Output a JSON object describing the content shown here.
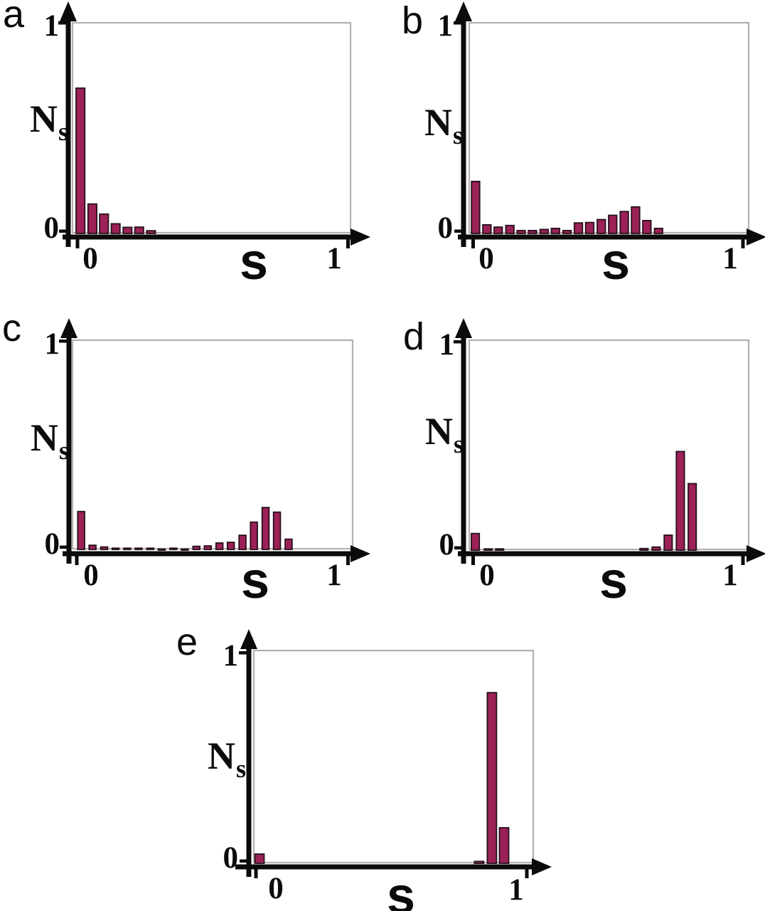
{
  "figure": {
    "description": "Five histogram panels of N_s versus s",
    "panel_letters": [
      "a",
      "b",
      "c",
      "d",
      "e"
    ]
  },
  "colors": {
    "bar_fill": "#9c2157",
    "bar_stroke": "#26101e",
    "axis": "#0b0b0b",
    "frame": "#b6b0ab",
    "text": "#0b0b0b"
  },
  "chart_data": [
    {
      "panel": "a",
      "letter": "a",
      "type": "bar",
      "xlabel": "s",
      "ylabel_base": "N",
      "ylabel_sub": "s",
      "ytick_top": "1",
      "ytick_bottom": "0",
      "xtick_left": "0",
      "xtick_right": "1",
      "ylim": [
        0,
        1
      ],
      "xlim_ticks": [
        0,
        1
      ],
      "x": [
        0.011,
        0.055,
        0.098,
        0.141,
        0.185,
        0.228,
        0.272
      ],
      "values": [
        0.69,
        0.14,
        0.092,
        0.046,
        0.029,
        0.03,
        0.013
      ]
    },
    {
      "panel": "b",
      "letter": "b",
      "type": "bar",
      "xlabel": "s",
      "ylabel_base": "N",
      "ylabel_sub": "s",
      "ytick_top": "1",
      "ytick_bottom": "0",
      "xtick_left": "0",
      "xtick_right": "1",
      "ylim": [
        0,
        1
      ],
      "xlim_ticks": [
        0,
        1
      ],
      "x": [
        0.009,
        0.051,
        0.093,
        0.136,
        0.178,
        0.22,
        0.263,
        0.305,
        0.348,
        0.39,
        0.432,
        0.475,
        0.517,
        0.56,
        0.602,
        0.644,
        0.687
      ],
      "values": [
        0.247,
        0.041,
        0.03,
        0.038,
        0.014,
        0.014,
        0.019,
        0.024,
        0.014,
        0.05,
        0.052,
        0.066,
        0.086,
        0.104,
        0.126,
        0.061,
        0.024
      ]
    },
    {
      "panel": "c",
      "letter": "c",
      "type": "bar",
      "xlabel": "s",
      "ylabel_base": "N",
      "ylabel_sub": "s",
      "ytick_top": "1",
      "ytick_bottom": "0",
      "xtick_left": "0",
      "xtick_right": "1",
      "ylim": [
        0,
        1
      ],
      "xlim_ticks": [
        0,
        1
      ],
      "x": [
        0.016,
        0.058,
        0.101,
        0.143,
        0.186,
        0.228,
        0.271,
        0.313,
        0.356,
        0.398,
        0.441,
        0.483,
        0.526,
        0.568,
        0.611,
        0.653,
        0.696,
        0.738,
        0.781
      ],
      "values": [
        0.182,
        0.02,
        0.012,
        0.006,
        0.006,
        0.006,
        0.006,
        0.002,
        0.006,
        0.002,
        0.015,
        0.017,
        0.031,
        0.034,
        0.068,
        0.131,
        0.201,
        0.179,
        0.049
      ]
    },
    {
      "panel": "d",
      "letter": "d",
      "type": "bar",
      "xlabel": "s",
      "ylabel_base": "N",
      "ylabel_sub": "s",
      "ytick_top": "1",
      "ytick_bottom": "0",
      "xtick_left": "0",
      "xtick_right": "1",
      "ylim": [
        0,
        1
      ],
      "xlim_ticks": [
        0,
        1
      ],
      "x": [
        0.008,
        0.056,
        0.098,
        0.633,
        0.678,
        0.723,
        0.768,
        0.812
      ],
      "values": [
        0.08,
        0.006,
        0.006,
        0.008,
        0.015,
        0.072,
        0.473,
        0.319
      ]
    },
    {
      "panel": "e",
      "letter": "e",
      "type": "bar",
      "xlabel": "s",
      "ylabel_base": "N",
      "ylabel_sub": "s",
      "ytick_top": "1",
      "ytick_bottom": "0",
      "xtick_left": "0",
      "xtick_right": "1",
      "ylim": [
        0,
        1
      ],
      "xlim_ticks": [
        0,
        1
      ],
      "x": [
        0.013,
        0.824,
        0.871,
        0.916
      ],
      "values": [
        0.044,
        0.009,
        0.81,
        0.169
      ]
    }
  ]
}
